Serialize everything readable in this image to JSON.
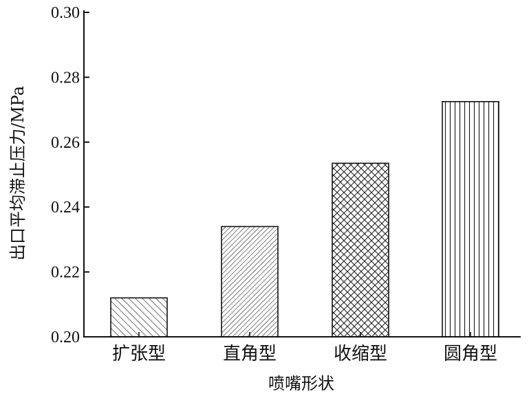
{
  "chart_data": {
    "type": "bar",
    "categories": [
      "扩张型",
      "直角型",
      "收缩型",
      "圆角型"
    ],
    "values": [
      0.212,
      0.234,
      0.2535,
      0.2725
    ],
    "patterns": [
      "diagonal-sparse",
      "diagonal-dense",
      "crosshatch",
      "vertical"
    ],
    "title": "",
    "xlabel": "喷嘴形状",
    "ylabel": "出口平均滞止压力/MPa",
    "ylim": [
      0.2,
      0.3
    ],
    "yticks": [
      "0.20",
      "0.22",
      "0.24",
      "0.26",
      "0.28",
      "0.30"
    ],
    "grid": false,
    "bar_fill": "#ffffff",
    "stroke": "#111111"
  }
}
